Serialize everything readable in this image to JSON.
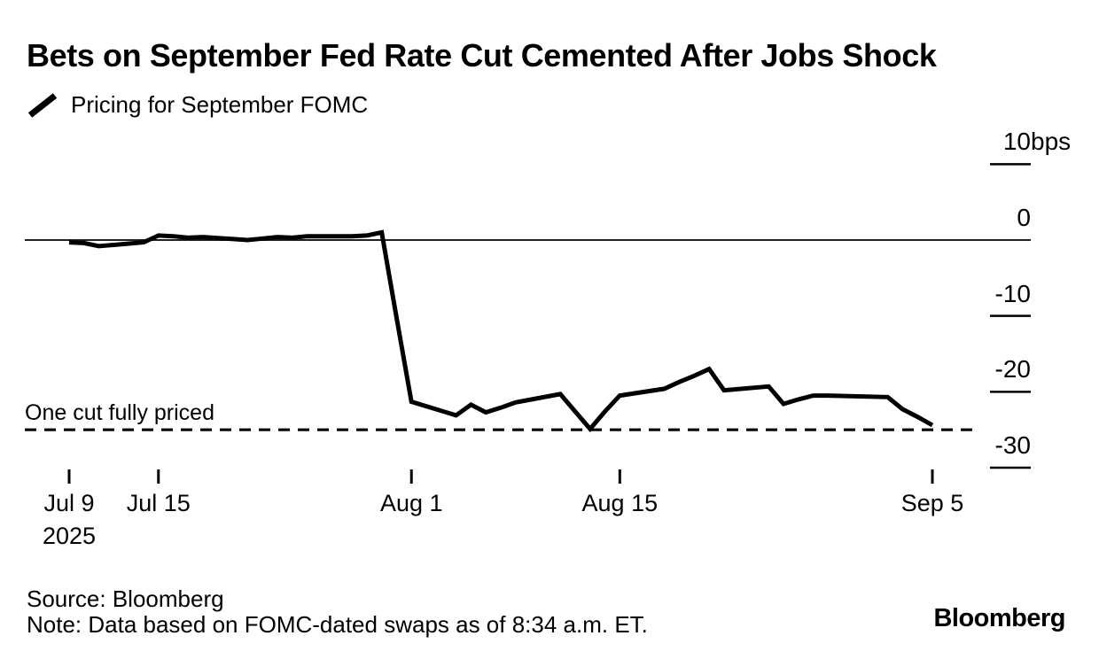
{
  "header": {
    "title": "Bets on September Fed Rate Cut Cemented After Jobs Shock",
    "legend_label": "Pricing for September FOMC"
  },
  "footer": {
    "source": "Source: Bloomberg",
    "note": "Note: Data based on FOMC-dated swaps as of 8:34 a.m. ET.",
    "logo": "Bloomberg"
  },
  "colors": {
    "line": "#000000",
    "zero_line": "#222222",
    "tick": "#000000",
    "reference_line": "#000000",
    "background": "#ffffff",
    "text": "#000000"
  },
  "chart_data": {
    "type": "line",
    "title": "Bets on September Fed Rate Cut Cemented After Jobs Shock",
    "unit": "bps",
    "year": "2025",
    "ylim": [
      -30,
      10
    ],
    "grid": false,
    "legend_position": "top-left",
    "zero_line": true,
    "y_axis": {
      "side": "right",
      "ticks": [
        {
          "value": 10,
          "label": "10",
          "suffix": "bps"
        },
        {
          "value": 0,
          "label": "0"
        },
        {
          "value": -10,
          "label": "-10"
        },
        {
          "value": -20,
          "label": "-20"
        },
        {
          "value": -30,
          "label": "-30"
        }
      ]
    },
    "x_axis": {
      "ticks": [
        {
          "date": "Jul 9",
          "label": "Jul 9",
          "sublabel": "2025"
        },
        {
          "date": "Jul 15",
          "label": "Jul 15"
        },
        {
          "date": "Aug 1",
          "label": "Aug 1"
        },
        {
          "date": "Aug 15",
          "label": "Aug 15"
        },
        {
          "date": "Sep 5",
          "label": "Sep 5"
        }
      ]
    },
    "reference_line": {
      "value": -25,
      "label": "One cut fully priced",
      "style": "dashed"
    },
    "series": [
      {
        "name": "Pricing for September FOMC",
        "color": "#000000",
        "points": [
          {
            "date": "Jul 9",
            "value": -0.3
          },
          {
            "date": "Jul 10",
            "value": -0.4
          },
          {
            "date": "Jul 11",
            "value": -0.8
          },
          {
            "date": "Jul 14",
            "value": -0.3
          },
          {
            "date": "Jul 15",
            "value": 0.6
          },
          {
            "date": "Jul 16",
            "value": 0.5
          },
          {
            "date": "Jul 17",
            "value": 0.3
          },
          {
            "date": "Jul 18",
            "value": 0.4
          },
          {
            "date": "Jul 21",
            "value": 0.0
          },
          {
            "date": "Jul 22",
            "value": 0.2
          },
          {
            "date": "Jul 23",
            "value": 0.4
          },
          {
            "date": "Jul 24",
            "value": 0.3
          },
          {
            "date": "Jul 25",
            "value": 0.5
          },
          {
            "date": "Jul 28",
            "value": 0.5
          },
          {
            "date": "Jul 29",
            "value": 0.6
          },
          {
            "date": "Jul 30",
            "value": 1.0
          },
          {
            "date": "Jul 31",
            "value": -10.2
          },
          {
            "date": "Aug 1",
            "value": -21.3
          },
          {
            "date": "Aug 4",
            "value": -23.1
          },
          {
            "date": "Aug 5",
            "value": -21.7
          },
          {
            "date": "Aug 6",
            "value": -22.7
          },
          {
            "date": "Aug 7",
            "value": -22.1
          },
          {
            "date": "Aug 8",
            "value": -21.4
          },
          {
            "date": "Aug 11",
            "value": -20.3
          },
          {
            "date": "Aug 12",
            "value": -22.6
          },
          {
            "date": "Aug 13",
            "value": -24.9
          },
          {
            "date": "Aug 14",
            "value": -22.6
          },
          {
            "date": "Aug 15",
            "value": -20.5
          },
          {
            "date": "Aug 18",
            "value": -19.6
          },
          {
            "date": "Aug 19",
            "value": -18.7
          },
          {
            "date": "Aug 20",
            "value": -17.9
          },
          {
            "date": "Aug 21",
            "value": -17.0
          },
          {
            "date": "Aug 22",
            "value": -19.8
          },
          {
            "date": "Aug 25",
            "value": -19.3
          },
          {
            "date": "Aug 26",
            "value": -21.6
          },
          {
            "date": "Aug 27",
            "value": -21.0
          },
          {
            "date": "Aug 28",
            "value": -20.5
          },
          {
            "date": "Aug 29",
            "value": -20.5
          },
          {
            "date": "Sep 2",
            "value": -20.7
          },
          {
            "date": "Sep 3",
            "value": -22.3
          },
          {
            "date": "Sep 4",
            "value": -23.3
          },
          {
            "date": "Sep 5",
            "value": -24.4
          }
        ]
      }
    ]
  }
}
